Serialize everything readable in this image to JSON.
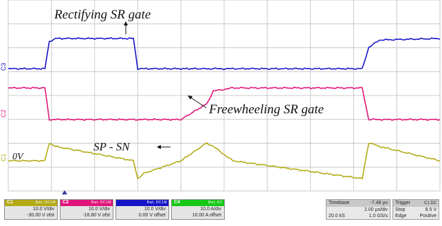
{
  "chart_data": {
    "type": "line",
    "title": "",
    "xlabel": "",
    "ylabel": "",
    "grid": true,
    "x_divisions": 10,
    "y_divisions": 8,
    "x": [
      0,
      0.85,
      0.95,
      1.1,
      2.9,
      3.0,
      3.15,
      4.0,
      4.6,
      4.75,
      5.2,
      8.2,
      8.35,
      8.6,
      10
    ],
    "series": [
      {
        "name": "Rectifying SR gate",
        "color": "#1414c8",
        "marker": "1",
        "values": [
          0.0,
          0.0,
          0.9,
          1.0,
          1.0,
          0.0,
          0.0,
          0.0,
          0.0,
          0.0,
          0.0,
          0.0,
          0.7,
          0.95,
          1.0
        ]
      },
      {
        "name": "Freewheeling SR gate",
        "color": "#e0147a",
        "marker": "2",
        "values": [
          1.0,
          1.0,
          0.0,
          0.0,
          0.0,
          0.0,
          0.0,
          0.0,
          0.5,
          0.9,
          1.0,
          1.0,
          0.0,
          0.0,
          0.0
        ]
      },
      {
        "name": "SP - SN",
        "color": "#b4aa14",
        "marker": "1",
        "values": [
          0.0,
          0.0,
          1.0,
          0.8,
          0.0,
          -1.0,
          -0.7,
          0.0,
          1.0,
          0.8,
          0.0,
          -1.0,
          1.0,
          0.8,
          0.0
        ]
      }
    ],
    "annotations": [
      {
        "text": "Rectifying SR gate",
        "target_series": 0
      },
      {
        "text": "Freewheeling SR gate",
        "target_series": 1
      },
      {
        "text": "SP - SN",
        "target_series": 2
      },
      {
        "text": "0V",
        "target_series": 2
      }
    ]
  },
  "infobar": {
    "channels": [
      {
        "name": "C1",
        "color": "#b4aa14",
        "tags": "BwL DC1M",
        "scale": "10.0 V/div",
        "offset": "-30.00 V ofst"
      },
      {
        "name": "C2",
        "color": "#e0147a",
        "tags": "BwL DC1M",
        "scale": "10.0 V/div",
        "offset": "-16.80 V ofst"
      },
      {
        "name": "",
        "color": "#1414c8",
        "tags": "BwL DC1M",
        "scale": "10.0 V/div",
        "offset": "0.00 V offset"
      },
      {
        "name": "C4",
        "color": "#14c814",
        "tags": "BwL DC",
        "scale": "10.0 A/div",
        "offset": "10.00 A offset"
      }
    ],
    "timebase": {
      "label": "Timebase",
      "position": "-7.48 µs",
      "scale": "2.00 µs/div",
      "samples": "20.0 kS",
      "rate": "1.0 GS/s"
    },
    "trigger": {
      "label": "Trigger",
      "tags": "C1 DC",
      "mode": "Stop",
      "level": "8.5 V",
      "type": "Edge",
      "slope": "Positive"
    }
  }
}
